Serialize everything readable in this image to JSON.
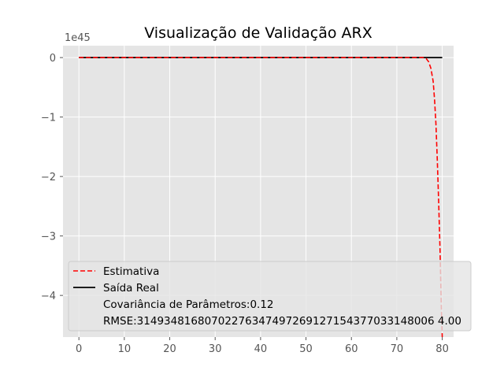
{
  "chart_data": {
    "type": "line",
    "title": "Visualização de Validação ARX",
    "xlabel": "",
    "ylabel": "",
    "y_offset_text": "1e45",
    "xlim": [
      -3.5,
      82.5
    ],
    "ylim": [
      -4.7,
      0.2
    ],
    "x_ticks": [
      0,
      10,
      20,
      30,
      40,
      50,
      60,
      70,
      80
    ],
    "x_tick_labels": [
      "0",
      "10",
      "20",
      "30",
      "40",
      "50",
      "60",
      "70",
      "80"
    ],
    "y_ticks": [
      0,
      -1,
      -2,
      -3,
      -4
    ],
    "y_tick_labels": [
      "0",
      "−1",
      "−2",
      "−3",
      "−4"
    ],
    "grid": true,
    "style": "ggplot",
    "legend_position": "lower-right",
    "series": [
      {
        "name": "Estimativa",
        "color": "#ff0000",
        "linestyle": "dashed",
        "x": [
          0,
          10,
          20,
          30,
          40,
          50,
          60,
          70,
          74,
          75,
          76,
          76.5,
          77,
          77.5,
          78,
          78.3,
          78.6,
          78.9,
          79.2,
          79.5,
          79.8,
          80
        ],
        "values": [
          0,
          0,
          0,
          0,
          0,
          0,
          0,
          0,
          0,
          0,
          0,
          -0.02,
          -0.07,
          -0.18,
          -0.4,
          -0.7,
          -1.1,
          -1.7,
          -2.4,
          -3.2,
          -4.2,
          -4.7
        ]
      },
      {
        "name": "Saída Real",
        "color": "#000000",
        "linestyle": "solid",
        "x": [
          0,
          80
        ],
        "values": [
          0,
          0
        ]
      }
    ],
    "legend_extra": [
      "Covariância de Parâmetros:0.12",
      "RMSE:31493481680702276347497269127154377033148006 4.00"
    ]
  }
}
